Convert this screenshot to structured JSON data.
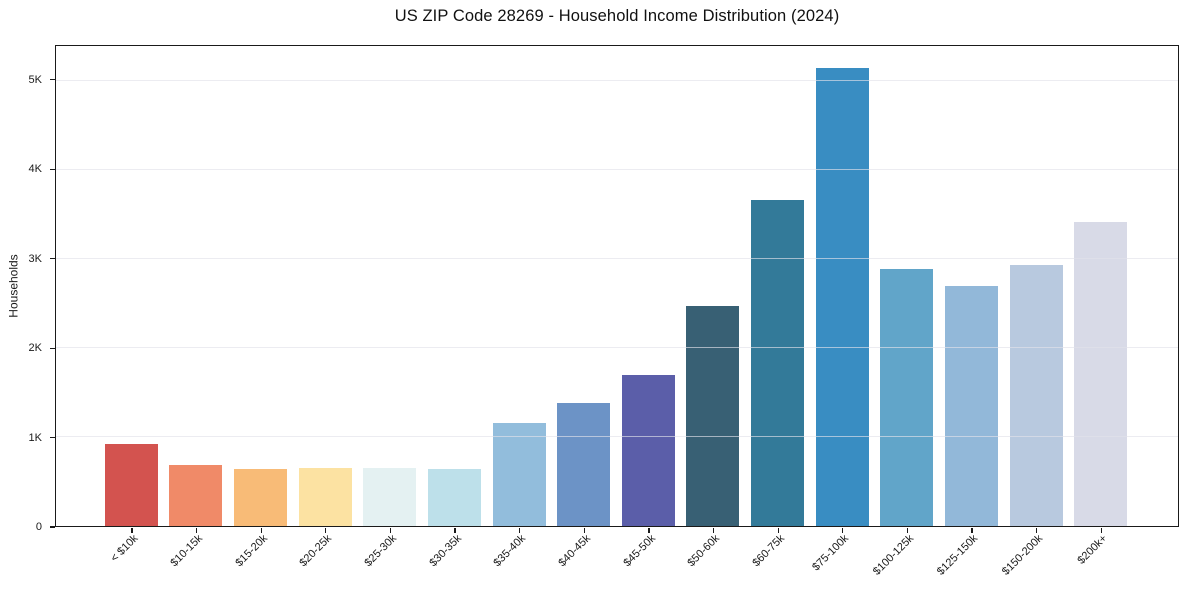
{
  "chart_data": {
    "type": "bar",
    "title": "US ZIP Code 28269 - Household Income Distribution (2024)",
    "xlabel": "",
    "ylabel": "Households",
    "categories": [
      "< $10k",
      "$10-15k",
      "$15-20k",
      "$20-25k",
      "$25-30k",
      "$30-35k",
      "$35-40k",
      "$40-45k",
      "$45-50k",
      "$50-60k",
      "$60-75k",
      "$75-100k",
      "$100-125k",
      "$125-150k",
      "$150-200k",
      "$200k+"
    ],
    "values": [
      920,
      690,
      645,
      655,
      655,
      635,
      1160,
      1380,
      1700,
      2465,
      3660,
      5140,
      2890,
      2700,
      2935,
      3415
    ],
    "bar_colors": [
      "#d3534f",
      "#f08a68",
      "#f8bb77",
      "#fce2a2",
      "#e4f1f2",
      "#bde0ea",
      "#92bddc",
      "#6c93c6",
      "#5b5ea9",
      "#386074",
      "#337a99",
      "#398dc2",
      "#61a5c9",
      "#92b8d9",
      "#b8c9df",
      "#d8dae7"
    ],
    "ylim": [
      0,
      5390
    ],
    "yticks": [
      {
        "value": 0,
        "label": "0"
      },
      {
        "value": 1000,
        "label": "1K"
      },
      {
        "value": 2000,
        "label": "2K"
      },
      {
        "value": 3000,
        "label": "3K"
      },
      {
        "value": 4000,
        "label": "4K"
      },
      {
        "value": 5000,
        "label": "5K"
      }
    ],
    "grid": "horizontal",
    "legend": "none",
    "colors": {
      "background": "#ffffff",
      "spine": "#1a1a1a",
      "gridline": "#e2e2ea",
      "text": "#1a1a1a"
    }
  }
}
